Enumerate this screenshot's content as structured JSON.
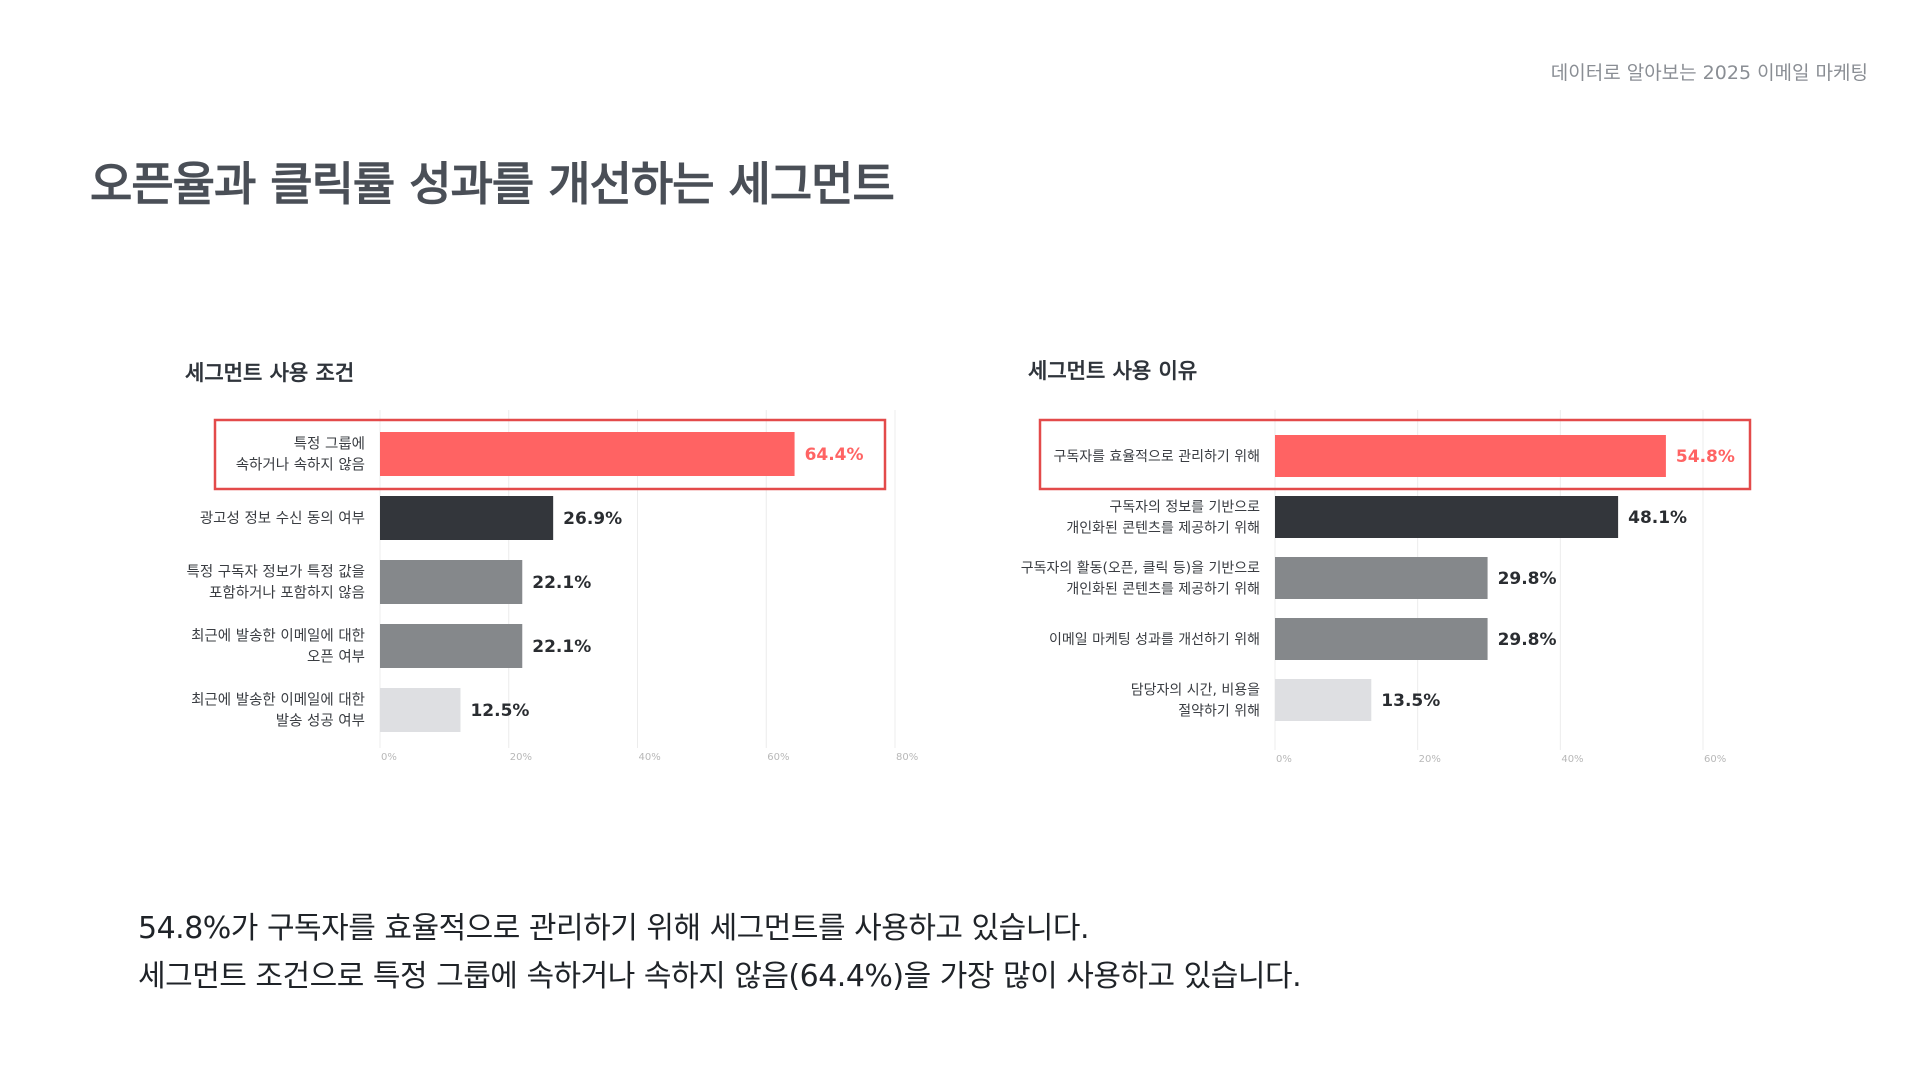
{
  "header": {
    "note": "데이터로 알아보는 2025 이메일 마케팅"
  },
  "page": {
    "title": "오픈율과 클릭률 성과를 개선하는 세그먼트"
  },
  "colors": {
    "highlight": "#ff6363",
    "dark": "#33363b",
    "mid": "#85888b",
    "light": "#dedfe2",
    "highlight_border": "#e34a4a",
    "grid": "#ececec",
    "tick": "#b8b8b8"
  },
  "chart_data": [
    {
      "type": "bar",
      "orientation": "horizontal",
      "title": "세그먼트 사용 조건",
      "categories": [
        [
          "특정 그룹에",
          "속하거나 속하지 않음"
        ],
        [
          "광고성 정보 수신 동의 여부"
        ],
        [
          "특정 구독자 정보가 특정 값을",
          "포함하거나 포함하지 않음"
        ],
        [
          "최근에 발송한 이메일에 대한",
          "오픈 여부"
        ],
        [
          "최근에 발송한 이메일에 대한",
          "발송 성공 여부"
        ]
      ],
      "values": [
        64.4,
        26.9,
        22.1,
        22.1,
        12.5
      ],
      "value_labels": [
        "64.4%",
        "26.9%",
        "22.1%",
        "22.1%",
        "12.5%"
      ],
      "bar_colors": [
        "highlight",
        "dark",
        "mid",
        "mid",
        "light"
      ],
      "highlighted_index": 0,
      "xlim": [
        0,
        80
      ],
      "xticks": [
        0,
        20,
        40,
        60,
        80
      ],
      "xtick_labels": [
        "0%",
        "20%",
        "40%",
        "60%",
        "80%"
      ]
    },
    {
      "type": "bar",
      "orientation": "horizontal",
      "title": "세그먼트 사용 이유",
      "categories": [
        [
          "구독자를 효율적으로 관리하기 위해"
        ],
        [
          "구독자의 정보를 기반으로",
          "개인화된 콘텐츠를 제공하기 위해"
        ],
        [
          "구독자의 활동(오픈, 클릭 등)을 기반으로",
          "개인화된 콘텐츠를 제공하기 위해"
        ],
        [
          "이메일 마케팅 성과를 개선하기 위해"
        ],
        [
          "담당자의 시간, 비용을",
          "절약하기 위해"
        ]
      ],
      "values": [
        54.8,
        48.1,
        29.8,
        29.8,
        13.5
      ],
      "value_labels": [
        "54.8%",
        "48.1%",
        "29.8%",
        "29.8%",
        "13.5%"
      ],
      "bar_colors": [
        "highlight",
        "dark",
        "mid",
        "mid",
        "light"
      ],
      "highlighted_index": 0,
      "xlim": [
        0,
        60
      ],
      "xticks": [
        0,
        20,
        40,
        60
      ],
      "xtick_labels": [
        "0%",
        "20%",
        "40%",
        "60%"
      ]
    }
  ],
  "summary": {
    "line1": "54.8%가 구독자를 효율적으로 관리하기 위해 세그먼트를 사용하고 있습니다.",
    "line2": "세그먼트 조건으로 특정 그룹에 속하거나 속하지 않음(64.4%)을 가장 많이 사용하고 있습니다."
  }
}
